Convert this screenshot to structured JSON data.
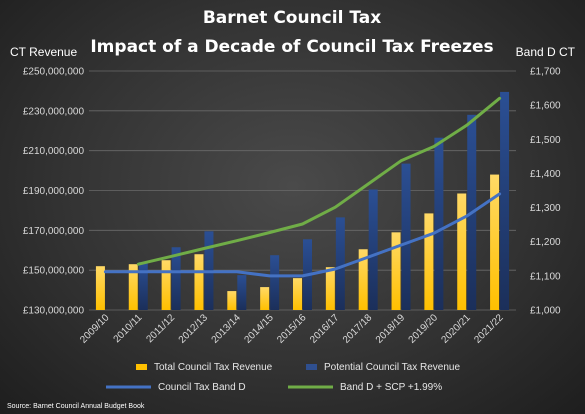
{
  "chart_data": {
    "type": "bar",
    "title": [
      "Barnet Council Tax",
      "Impact of a Decade of Council Tax Freezes"
    ],
    "ylabel_left": "CT Revenue",
    "ylabel_right": "Band D CT",
    "source": "Source: Barnet Council Annual Budget Book",
    "categories": [
      "2009/10",
      "2010/11",
      "2011/12",
      "2012/13",
      "2013/14",
      "2014/15",
      "2015/16",
      "2016/17",
      "2017/18",
      "2018/19",
      "2019/20",
      "2020/21",
      "2021/22"
    ],
    "left_axis": {
      "ylim": [
        130000000,
        250000000
      ],
      "ticks": [
        "£130,000,000",
        "£150,000,000",
        "£170,000,000",
        "£190,000,000",
        "£210,000,000",
        "£230,000,000",
        "£250,000,000"
      ]
    },
    "right_axis": {
      "ylim": [
        1000,
        1700
      ],
      "ticks": [
        "£1,000",
        "£1,100",
        "£1,200",
        "£1,300",
        "£1,400",
        "£1,500",
        "£1,600",
        "£1,700"
      ]
    },
    "bar_series": [
      {
        "name": "Total Council Tax Revenue",
        "color": "#ffc000",
        "values": [
          152000000,
          153000000,
          155000000,
          158000000,
          139500000,
          141500000,
          146000000,
          151500000,
          160500000,
          169000000,
          178500000,
          188500000,
          198000000
        ]
      },
      {
        "name": "Potential Council Tax Revenue",
        "color": "#2f4f8f",
        "values": [
          null,
          154000000,
          161500000,
          169500000,
          147500000,
          157500000,
          165500000,
          176500000,
          190500000,
          203500000,
          216500000,
          228000000,
          239500000
        ]
      }
    ],
    "line_series": [
      {
        "name": "Council Tax Band D",
        "color": "#4472c4",
        "values": [
          1112,
          1112,
          1112,
          1112,
          1112,
          1100,
          1100,
          1120,
          1155,
          1190,
          1225,
          1275,
          1340
        ]
      },
      {
        "name": "Band D + SCP +1.99%",
        "color": "#70ad47",
        "values": [
          null,
          1134,
          1157,
          1180,
          1203,
          1227,
          1252,
          1301,
          1369,
          1437,
          1479,
          1541,
          1620
        ]
      }
    ],
    "legend_position": "bottom",
    "grid": "horizontal"
  }
}
